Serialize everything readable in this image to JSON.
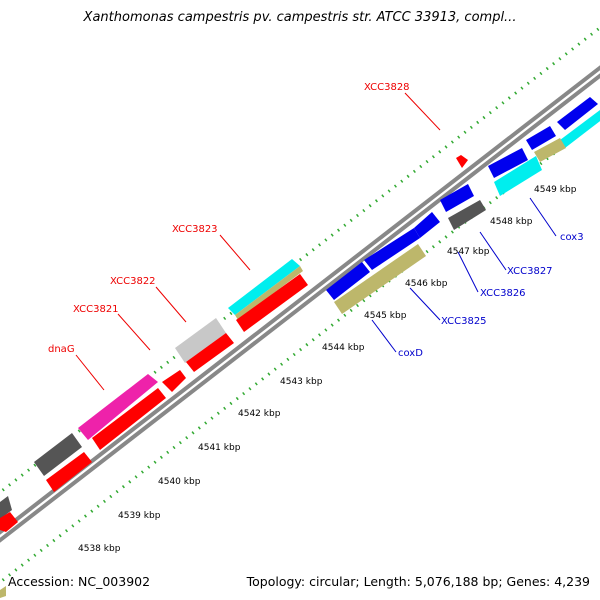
{
  "title": "Xanthomonas campestris pv. campestris str. ATCC 33913, compl...",
  "footer": {
    "accession": "Accession: NC_003902",
    "summary": "Topology: circular; Length: 5,076,188 bp; Genes: 4,239"
  },
  "ticks": [
    "4538 kbp",
    "4539 kbp",
    "4540 kbp",
    "4541 kbp",
    "4542 kbp",
    "4543 kbp",
    "4544 kbp",
    "4545 kbp",
    "4546 kbp",
    "4547 kbp",
    "4548 kbp",
    "4549 kbp"
  ],
  "labels_forward": [
    "XCC3828",
    "XCC3823",
    "XCC3822",
    "XCC3821",
    "dnaG"
  ],
  "labels_reverse": [
    "cox3",
    "XCC3827",
    "XCC3826",
    "XCC3825",
    "coxD"
  ],
  "colors": {
    "red": "#ff0000",
    "blue": "#0000ee",
    "cyan": "#00eeee",
    "khaki": "#bdb76b",
    "magenta": "#ee22aa",
    "dark_gray": "#555555",
    "light_gray": "#c8c8c8",
    "backbone": "#888888",
    "gc_dots": "#33aa33",
    "forward_label": "#ee0000",
    "reverse_label": "#0000cc"
  }
}
